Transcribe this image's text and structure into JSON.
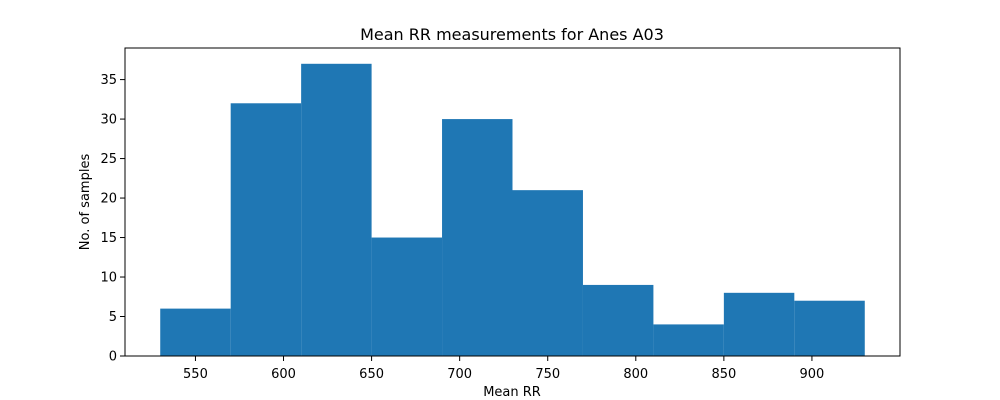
{
  "chart_data": {
    "type": "bar",
    "title": "Mean RR measurements for Anes A03",
    "xlabel": "Mean RR",
    "ylabel": "No. of samples",
    "bin_edges": [
      530,
      570,
      610,
      650,
      690,
      730,
      770,
      810,
      850,
      890,
      930
    ],
    "values": [
      6,
      32,
      37,
      15,
      30,
      21,
      9,
      4,
      8,
      7
    ],
    "xlim": [
      510,
      950
    ],
    "ylim": [
      0,
      39
    ],
    "xticks": [
      550,
      600,
      650,
      700,
      750,
      800,
      850,
      900
    ],
    "yticks": [
      0,
      5,
      10,
      15,
      20,
      25,
      30,
      35
    ],
    "bar_color": "#1f77b4",
    "grid": false,
    "legend": "none"
  }
}
